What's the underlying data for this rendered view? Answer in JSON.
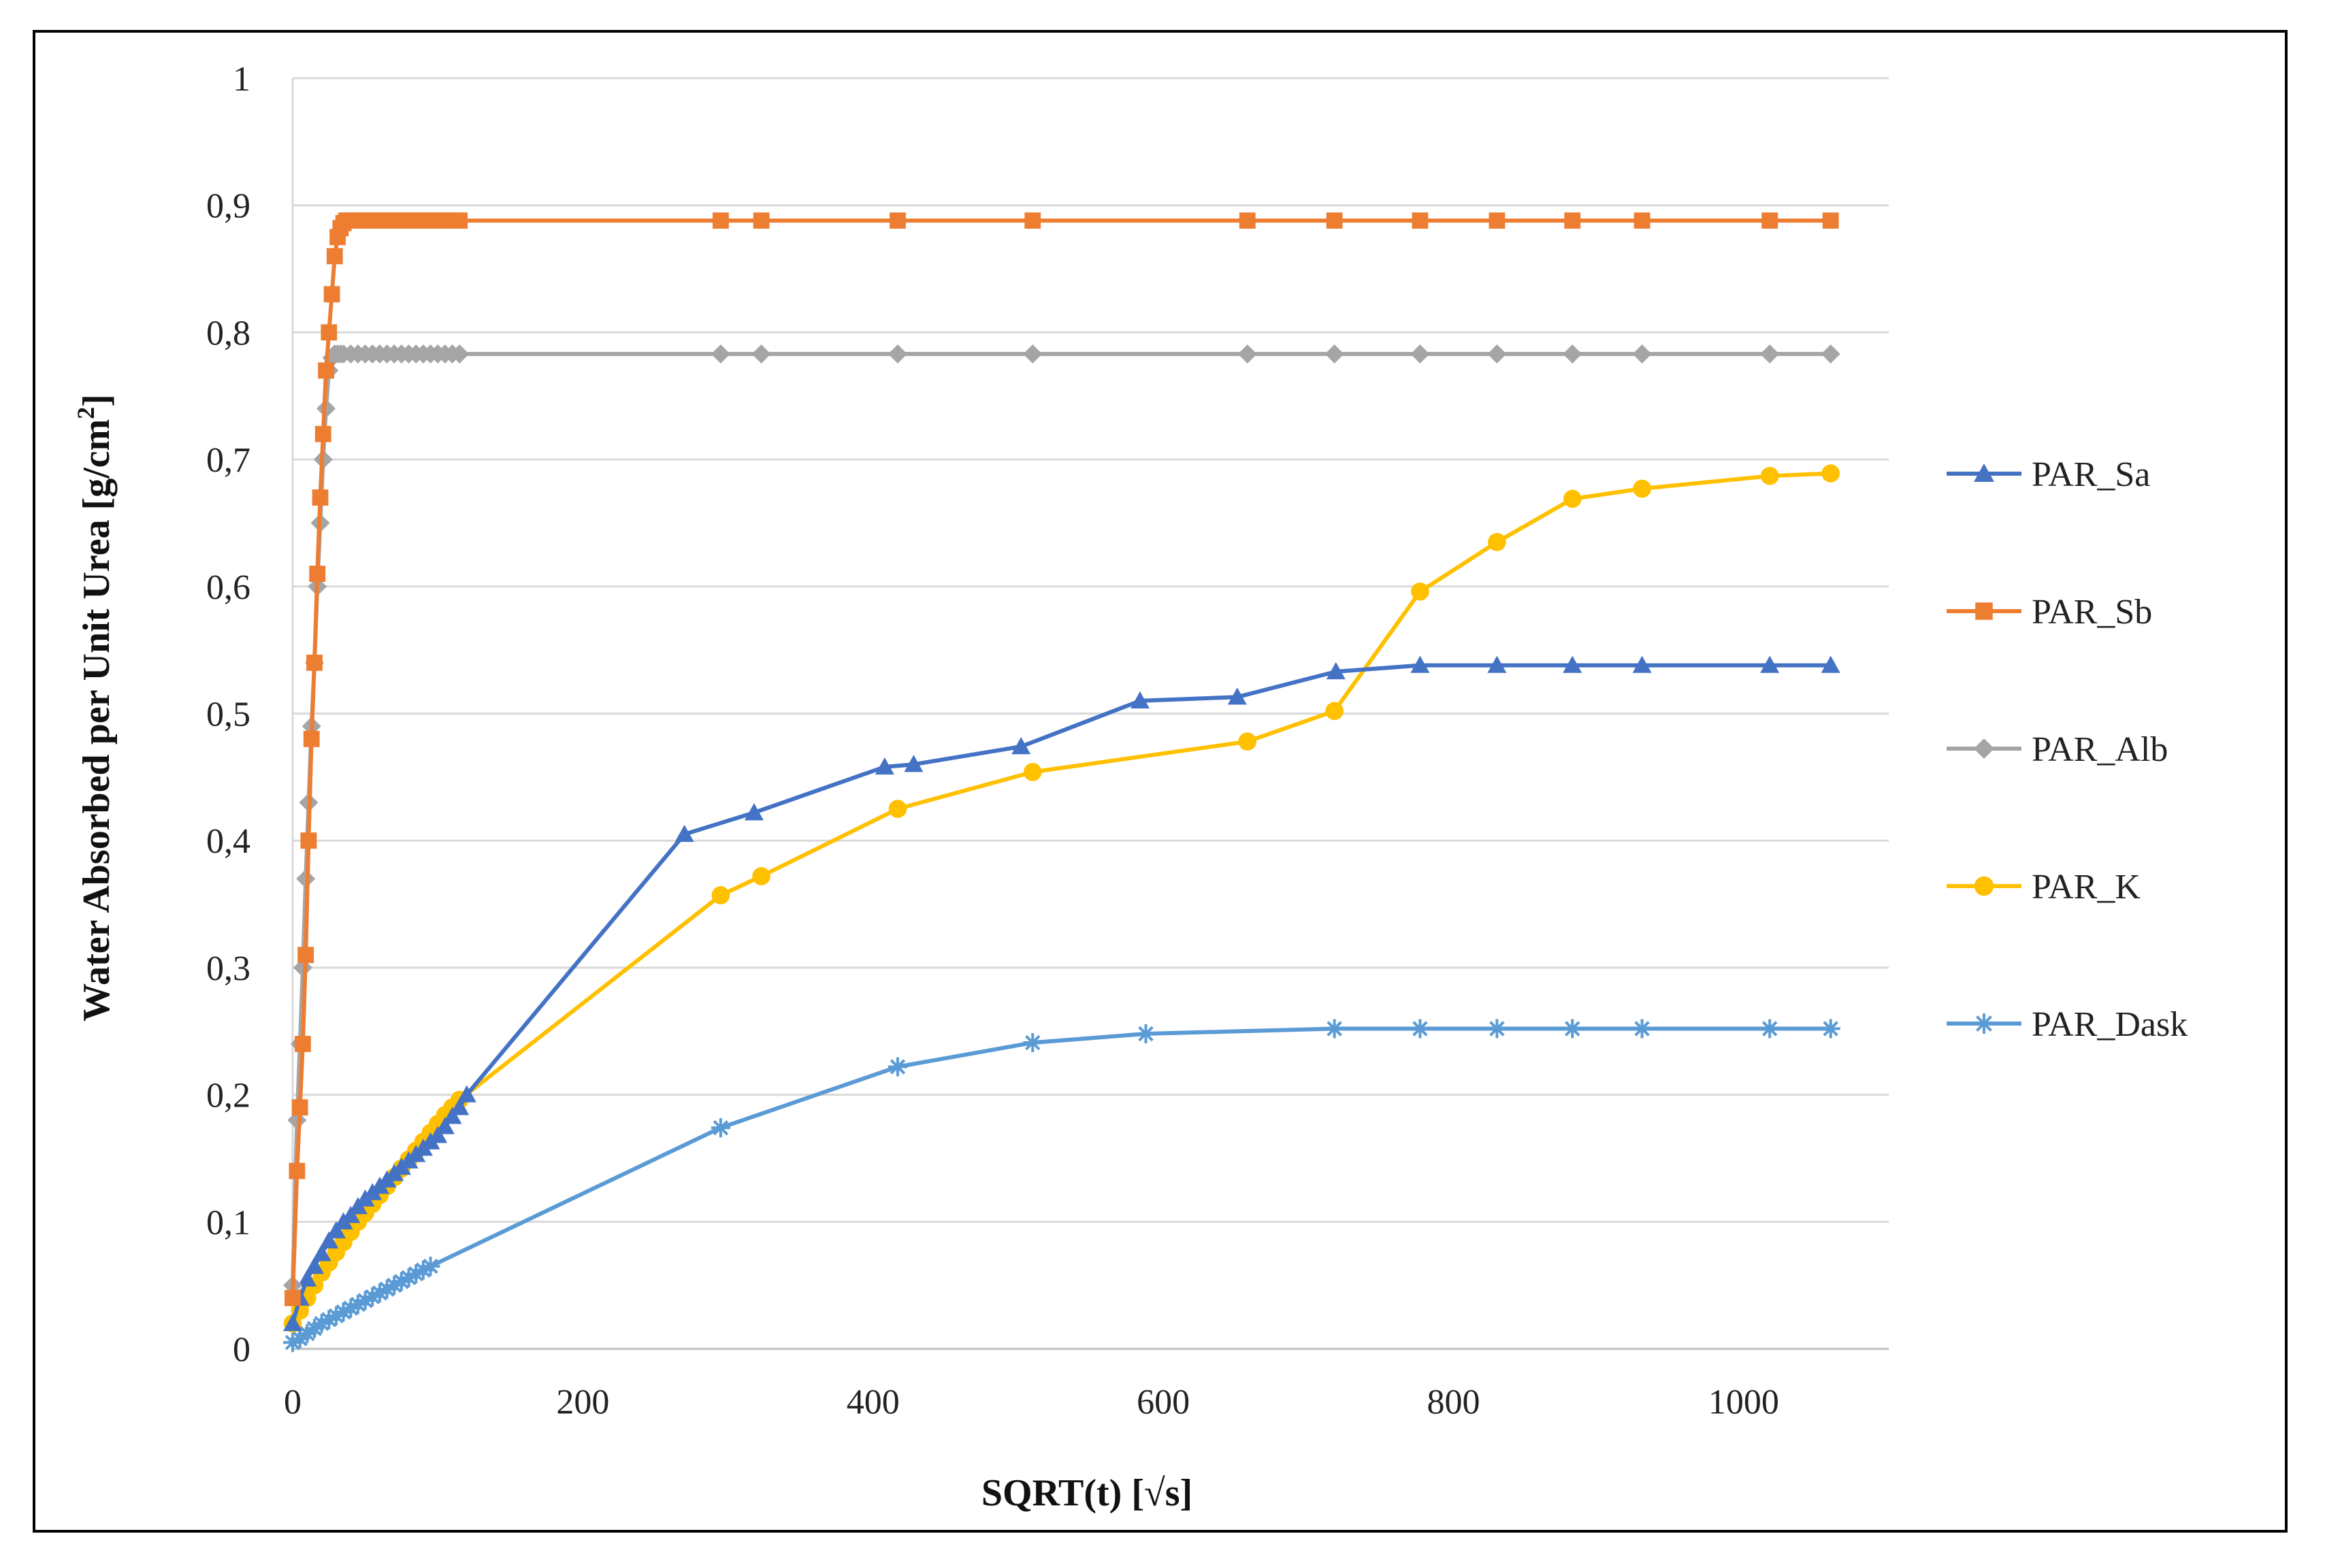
{
  "chart_data": {
    "type": "line",
    "title": "",
    "xlabel": "SQRT(t) [√s]",
    "ylabel_main": "Water Absorbed per Unit Urea [g/cm",
    "ylabel_sup": "2",
    "ylabel_end": "]",
    "xlim": [
      0,
      1100
    ],
    "ylim": [
      0,
      1
    ],
    "x_ticks": [
      0,
      200,
      400,
      600,
      800,
      1000
    ],
    "x_tick_labels": [
      "0",
      "200",
      "400",
      "600",
      "800",
      "1000"
    ],
    "y_ticks": [
      0,
      0.1,
      0.2,
      0.3,
      0.4,
      0.5,
      0.6,
      0.7,
      0.8,
      0.9,
      1
    ],
    "y_tick_labels": [
      "0",
      "0,1",
      "0,2",
      "0,3",
      "0,4",
      "0,5",
      "0,6",
      "0,7",
      "0,8",
      "0,9",
      "1"
    ],
    "grid": true,
    "legend_position": "right",
    "series": [
      {
        "name": "PAR_Sa",
        "color": "#4472C4",
        "marker": "triangle",
        "x": [
          0,
          5,
          10,
          15,
          20,
          25,
          30,
          35,
          40,
          45,
          50,
          55,
          60,
          65,
          70,
          75,
          80,
          85,
          90,
          95,
          100,
          105,
          110,
          115,
          120,
          270,
          318,
          408,
          428,
          502,
          584,
          651,
          719,
          777,
          830,
          882,
          930,
          1018,
          1060
        ],
        "y": [
          0.02,
          0.04,
          0.055,
          0.065,
          0.075,
          0.085,
          0.093,
          0.1,
          0.105,
          0.112,
          0.118,
          0.123,
          0.128,
          0.133,
          0.138,
          0.143,
          0.148,
          0.153,
          0.158,
          0.163,
          0.168,
          0.175,
          0.183,
          0.19,
          0.2,
          0.405,
          0.422,
          0.458,
          0.46,
          0.474,
          0.51,
          0.513,
          0.533,
          0.538,
          0.538,
          0.538,
          0.538,
          0.538,
          0.538
        ]
      },
      {
        "name": "PAR_Sb",
        "color": "#ED7D31",
        "marker": "square",
        "x": [
          0,
          3,
          5,
          7,
          9,
          11,
          13,
          15,
          17,
          19,
          21,
          23,
          25,
          27,
          29,
          31,
          33,
          35,
          37,
          39,
          41,
          43,
          45,
          50,
          55,
          60,
          65,
          70,
          75,
          80,
          85,
          90,
          95,
          100,
          105,
          110,
          115,
          295,
          323,
          417,
          510,
          658,
          718,
          777,
          830,
          882,
          930,
          1018,
          1060
        ],
        "y": [
          0.04,
          0.14,
          0.19,
          0.24,
          0.31,
          0.4,
          0.48,
          0.54,
          0.61,
          0.67,
          0.72,
          0.77,
          0.8,
          0.83,
          0.86,
          0.875,
          0.882,
          0.886,
          0.888,
          0.888,
          0.888,
          0.888,
          0.888,
          0.888,
          0.888,
          0.888,
          0.888,
          0.888,
          0.888,
          0.888,
          0.888,
          0.888,
          0.888,
          0.888,
          0.888,
          0.888,
          0.888,
          0.888,
          0.888,
          0.888,
          0.888,
          0.888,
          0.888,
          0.888,
          0.888,
          0.888,
          0.888,
          0.888,
          0.888
        ]
      },
      {
        "name": "PAR_Alb",
        "color": "#A5A5A5",
        "marker": "diamond",
        "x": [
          0,
          3,
          5,
          7,
          9,
          11,
          13,
          15,
          17,
          19,
          21,
          23,
          25,
          27,
          29,
          31,
          33,
          35,
          40,
          45,
          50,
          55,
          60,
          65,
          70,
          75,
          80,
          85,
          90,
          95,
          100,
          105,
          110,
          115,
          295,
          323,
          417,
          510,
          658,
          718,
          777,
          830,
          882,
          930,
          1018,
          1060
        ],
        "y": [
          0.05,
          0.18,
          0.24,
          0.3,
          0.37,
          0.43,
          0.49,
          0.54,
          0.6,
          0.65,
          0.7,
          0.74,
          0.77,
          0.78,
          0.783,
          0.783,
          0.783,
          0.783,
          0.783,
          0.783,
          0.783,
          0.783,
          0.783,
          0.783,
          0.783,
          0.783,
          0.783,
          0.783,
          0.783,
          0.783,
          0.783,
          0.783,
          0.783,
          0.783,
          0.783,
          0.783,
          0.783,
          0.783,
          0.783,
          0.783,
          0.783,
          0.783,
          0.783,
          0.783,
          0.783,
          0.783
        ]
      },
      {
        "name": "PAR_K",
        "color": "#FFC000",
        "marker": "circle",
        "x": [
          0,
          5,
          10,
          15,
          20,
          25,
          30,
          35,
          40,
          45,
          50,
          55,
          60,
          65,
          70,
          75,
          80,
          85,
          90,
          95,
          100,
          105,
          110,
          115,
          295,
          323,
          417,
          510,
          658,
          718,
          777,
          830,
          882,
          930,
          1018,
          1060
        ],
        "y": [
          0.02,
          0.03,
          0.04,
          0.05,
          0.06,
          0.068,
          0.076,
          0.084,
          0.092,
          0.1,
          0.107,
          0.114,
          0.121,
          0.128,
          0.135,
          0.142,
          0.149,
          0.156,
          0.163,
          0.17,
          0.177,
          0.184,
          0.19,
          0.196,
          0.357,
          0.372,
          0.425,
          0.454,
          0.478,
          0.502,
          0.596,
          0.635,
          0.669,
          0.677,
          0.687,
          0.689
        ]
      },
      {
        "name": "PAR_Dask",
        "color": "#5B9BD5",
        "marker": "asterisk",
        "x": [
          0,
          5,
          10,
          15,
          20,
          25,
          30,
          35,
          40,
          45,
          50,
          55,
          60,
          65,
          70,
          75,
          80,
          85,
          90,
          95,
          295,
          417,
          510,
          588,
          718,
          777,
          830,
          882,
          930,
          1018,
          1060
        ],
        "y": [
          0.005,
          0.008,
          0.012,
          0.016,
          0.02,
          0.023,
          0.026,
          0.029,
          0.032,
          0.035,
          0.038,
          0.041,
          0.044,
          0.047,
          0.05,
          0.053,
          0.056,
          0.059,
          0.062,
          0.065,
          0.174,
          0.222,
          0.241,
          0.248,
          0.252,
          0.252,
          0.252,
          0.252,
          0.252,
          0.252,
          0.252
        ]
      }
    ]
  }
}
